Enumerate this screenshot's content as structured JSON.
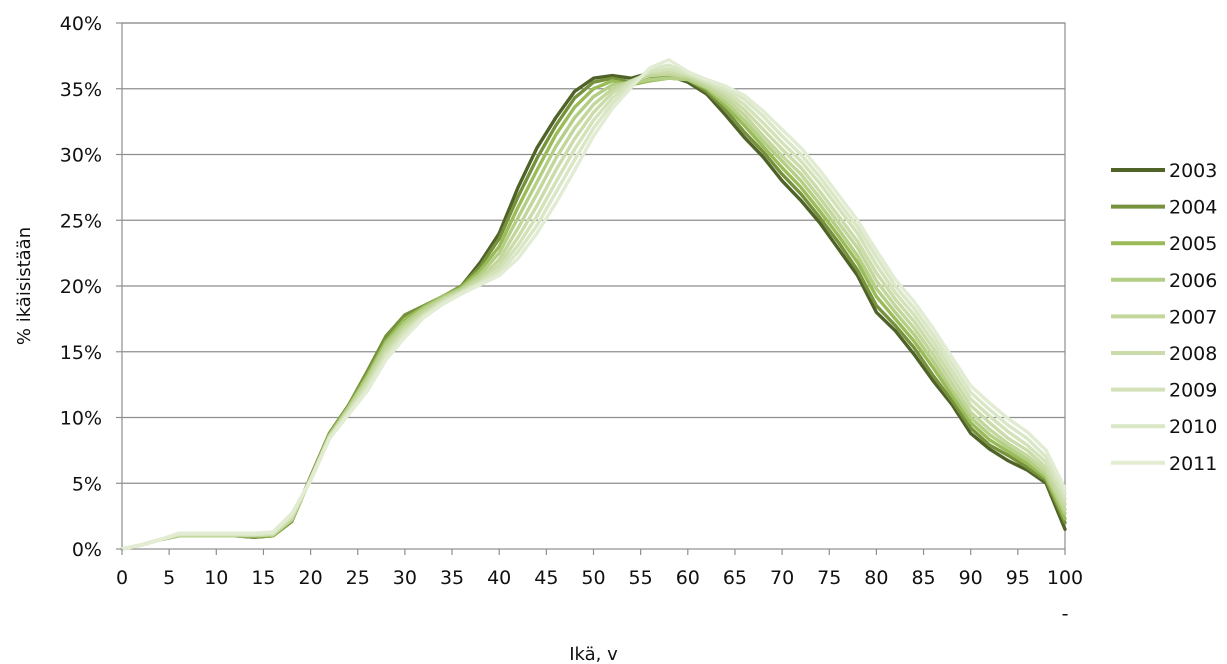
{
  "chart_data": {
    "type": "line",
    "title": "",
    "xlabel": "Ikä, v",
    "ylabel": "% ikäisistään",
    "x_ticks": [
      0,
      5,
      10,
      15,
      20,
      25,
      30,
      35,
      40,
      45,
      50,
      55,
      60,
      65,
      70,
      75,
      80,
      85,
      90,
      95,
      100
    ],
    "y_ticks": [
      "0%",
      "5%",
      "10%",
      "15%",
      "20%",
      "25%",
      "30%",
      "35%",
      "40%"
    ],
    "xlim": [
      0,
      100
    ],
    "ylim": [
      0,
      40
    ],
    "grid": "horizontal",
    "legend_position": "right",
    "extra_tick_label": "-",
    "series": [
      {
        "name": "2003",
        "color": "#4f6228",
        "x": [
          0,
          2,
          4,
          6,
          8,
          10,
          12,
          14,
          16,
          18,
          20,
          22,
          24,
          26,
          28,
          30,
          32,
          34,
          36,
          38,
          40,
          42,
          44,
          46,
          48,
          50,
          52,
          54,
          56,
          58,
          60,
          62,
          64,
          66,
          68,
          70,
          72,
          74,
          76,
          78,
          80,
          82,
          84,
          86,
          88,
          90,
          92,
          94,
          96,
          98,
          100
        ],
        "values": [
          0,
          0.3,
          0.7,
          1.0,
          1.0,
          1.0,
          1.0,
          0.9,
          1.0,
          2.1,
          5.5,
          8.8,
          10.9,
          13.2,
          16.0,
          17.6,
          18.2,
          19.1,
          20.0,
          21.8,
          24.0,
          27.5,
          30.5,
          32.8,
          34.8,
          35.8,
          36.0,
          35.8,
          36.2,
          36.0,
          35.5,
          34.6,
          33.0,
          31.3,
          29.8,
          28.0,
          26.5,
          24.8,
          22.8,
          20.8,
          18.0,
          16.6,
          14.8,
          12.8,
          11.0,
          8.8,
          7.6,
          6.7,
          6.0,
          5.0,
          1.5
        ]
      },
      {
        "name": "2004",
        "color": "#76923c",
        "x": [
          0,
          2,
          4,
          6,
          8,
          10,
          12,
          14,
          16,
          18,
          20,
          22,
          24,
          26,
          28,
          30,
          32,
          34,
          36,
          38,
          40,
          42,
          44,
          46,
          48,
          50,
          52,
          54,
          56,
          58,
          60,
          62,
          64,
          66,
          68,
          70,
          72,
          74,
          76,
          78,
          80,
          82,
          84,
          86,
          88,
          90,
          92,
          94,
          96,
          98,
          100
        ],
        "values": [
          0,
          0.3,
          0.7,
          1.0,
          1.0,
          1.0,
          1.0,
          0.9,
          1.0,
          2.1,
          5.4,
          8.8,
          10.9,
          13.5,
          16.2,
          17.8,
          18.5,
          19.2,
          20.0,
          21.5,
          23.6,
          26.8,
          29.7,
          32.2,
          34.3,
          35.5,
          35.8,
          35.5,
          35.8,
          35.9,
          35.7,
          34.8,
          33.4,
          31.7,
          30.2,
          28.5,
          27.0,
          25.2,
          23.3,
          21.2,
          18.5,
          17.0,
          15.3,
          13.2,
          11.3,
          9.2,
          7.9,
          7.1,
          6.2,
          5.2,
          2.0
        ]
      },
      {
        "name": "2005",
        "color": "#9bbb59",
        "x": [
          0,
          2,
          4,
          6,
          8,
          10,
          12,
          14,
          16,
          18,
          20,
          22,
          24,
          26,
          28,
          30,
          32,
          34,
          36,
          38,
          40,
          42,
          44,
          46,
          48,
          50,
          52,
          54,
          56,
          58,
          60,
          62,
          64,
          66,
          68,
          70,
          72,
          74,
          76,
          78,
          80,
          82,
          84,
          86,
          88,
          90,
          92,
          94,
          96,
          98,
          100
        ],
        "values": [
          0,
          0.3,
          0.7,
          1.0,
          1.0,
          1.0,
          1.0,
          1.0,
          1.0,
          2.2,
          5.4,
          8.7,
          10.8,
          13.2,
          15.8,
          17.5,
          18.4,
          19.2,
          19.9,
          21.2,
          23.0,
          26.0,
          28.8,
          31.5,
          33.6,
          35.0,
          35.6,
          35.3,
          35.6,
          35.8,
          35.7,
          35.0,
          33.7,
          32.2,
          30.6,
          29.0,
          27.5,
          25.7,
          23.8,
          21.8,
          19.2,
          17.5,
          15.8,
          13.8,
          11.7,
          9.6,
          8.3,
          7.4,
          6.5,
          5.4,
          2.3
        ]
      },
      {
        "name": "2006",
        "color": "#b3cf86",
        "x": [
          0,
          2,
          4,
          6,
          8,
          10,
          12,
          14,
          16,
          18,
          20,
          22,
          24,
          26,
          28,
          30,
          32,
          34,
          36,
          38,
          40,
          42,
          44,
          46,
          48,
          50,
          52,
          54,
          56,
          58,
          60,
          62,
          64,
          66,
          68,
          70,
          72,
          74,
          76,
          78,
          80,
          82,
          84,
          86,
          88,
          90,
          92,
          94,
          96,
          98,
          100
        ],
        "values": [
          0,
          0.3,
          0.7,
          1.0,
          1.0,
          1.0,
          1.0,
          1.0,
          1.1,
          2.2,
          5.4,
          8.6,
          10.7,
          13.0,
          15.6,
          17.2,
          18.3,
          19.1,
          19.8,
          20.9,
          22.5,
          25.2,
          27.9,
          30.6,
          32.8,
          34.4,
          35.3,
          35.4,
          35.7,
          35.8,
          35.7,
          35.1,
          34.0,
          32.6,
          31.0,
          29.5,
          28.0,
          26.2,
          24.3,
          22.3,
          19.8,
          18.0,
          16.3,
          14.3,
          12.1,
          10.0,
          8.7,
          7.7,
          6.8,
          5.6,
          2.7
        ]
      },
      {
        "name": "2007",
        "color": "#c3d69b",
        "x": [
          0,
          2,
          4,
          6,
          8,
          10,
          12,
          14,
          16,
          18,
          20,
          22,
          24,
          26,
          28,
          30,
          32,
          34,
          36,
          38,
          40,
          42,
          44,
          46,
          48,
          50,
          52,
          54,
          56,
          58,
          60,
          62,
          64,
          66,
          68,
          70,
          72,
          74,
          76,
          78,
          80,
          82,
          84,
          86,
          88,
          90,
          92,
          94,
          96,
          98,
          100
        ],
        "values": [
          0,
          0.3,
          0.7,
          1.1,
          1.1,
          1.1,
          1.1,
          1.0,
          1.1,
          2.3,
          5.3,
          8.6,
          10.6,
          12.8,
          15.3,
          16.9,
          18.1,
          19.0,
          19.7,
          20.6,
          22.0,
          24.4,
          27.0,
          29.7,
          32.0,
          33.8,
          35.0,
          35.6,
          36.0,
          36.1,
          35.9,
          35.2,
          34.3,
          33.0,
          31.4,
          29.9,
          28.5,
          26.7,
          24.8,
          22.9,
          20.4,
          18.5,
          16.8,
          14.8,
          12.6,
          10.4,
          9.1,
          8.0,
          7.1,
          5.9,
          3.0
        ]
      },
      {
        "name": "2008",
        "color": "#cbdcaa",
        "x": [
          0,
          2,
          4,
          6,
          8,
          10,
          12,
          14,
          16,
          18,
          20,
          22,
          24,
          26,
          28,
          30,
          32,
          34,
          36,
          38,
          40,
          42,
          44,
          46,
          48,
          50,
          52,
          54,
          56,
          58,
          60,
          62,
          64,
          66,
          68,
          70,
          72,
          74,
          76,
          78,
          80,
          82,
          84,
          86,
          88,
          90,
          92,
          94,
          96,
          98,
          100
        ],
        "values": [
          0,
          0.3,
          0.7,
          1.1,
          1.1,
          1.1,
          1.1,
          1.1,
          1.1,
          2.4,
          5.3,
          8.5,
          10.5,
          12.6,
          15.0,
          16.7,
          17.9,
          18.9,
          19.6,
          20.4,
          21.6,
          23.7,
          26.1,
          28.8,
          31.2,
          33.2,
          34.7,
          35.6,
          36.2,
          36.3,
          36.0,
          35.4,
          34.6,
          33.4,
          31.9,
          30.4,
          29.0,
          27.2,
          25.3,
          23.4,
          21.0,
          19.0,
          17.3,
          15.3,
          13.1,
          10.9,
          9.6,
          8.4,
          7.5,
          6.2,
          3.4
        ]
      },
      {
        "name": "2009",
        "color": "#d3e2b8",
        "x": [
          0,
          2,
          4,
          6,
          8,
          10,
          12,
          14,
          16,
          18,
          20,
          22,
          24,
          26,
          28,
          30,
          32,
          34,
          36,
          38,
          40,
          42,
          44,
          46,
          48,
          50,
          52,
          54,
          56,
          58,
          60,
          62,
          64,
          66,
          68,
          70,
          72,
          74,
          76,
          78,
          80,
          82,
          84,
          86,
          88,
          90,
          92,
          94,
          96,
          98,
          100
        ],
        "values": [
          0,
          0.3,
          0.7,
          1.1,
          1.1,
          1.1,
          1.1,
          1.1,
          1.2,
          2.5,
          5.3,
          8.5,
          10.4,
          12.4,
          14.8,
          16.5,
          17.8,
          18.8,
          19.5,
          20.3,
          21.3,
          23.1,
          25.3,
          27.9,
          30.4,
          32.6,
          34.3,
          35.5,
          36.3,
          36.5,
          36.1,
          35.5,
          34.8,
          33.8,
          32.4,
          30.9,
          29.5,
          27.8,
          25.9,
          24.0,
          21.6,
          19.5,
          17.8,
          15.8,
          13.6,
          11.4,
          10.1,
          8.9,
          7.9,
          6.6,
          3.8
        ]
      },
      {
        "name": "2010",
        "color": "#dae7c6",
        "x": [
          0,
          2,
          4,
          6,
          8,
          10,
          12,
          14,
          16,
          18,
          20,
          22,
          24,
          26,
          28,
          30,
          32,
          34,
          36,
          38,
          40,
          42,
          44,
          46,
          48,
          50,
          52,
          54,
          56,
          58,
          60,
          62,
          64,
          66,
          68,
          70,
          72,
          74,
          76,
          78,
          80,
          82,
          84,
          86,
          88,
          90,
          92,
          94,
          96,
          98,
          100
        ],
        "values": [
          0,
          0.3,
          0.7,
          1.1,
          1.1,
          1.1,
          1.1,
          1.1,
          1.2,
          2.6,
          5.2,
          8.4,
          10.3,
          12.2,
          14.6,
          16.3,
          17.7,
          18.7,
          19.5,
          20.2,
          21.0,
          22.6,
          24.6,
          27.1,
          29.6,
          32.0,
          33.9,
          35.3,
          36.5,
          36.8,
          36.2,
          35.6,
          35.0,
          34.2,
          32.9,
          31.4,
          30.0,
          28.3,
          26.4,
          24.5,
          22.2,
          20.0,
          18.3,
          16.3,
          14.1,
          11.9,
          10.6,
          9.4,
          8.4,
          7.0,
          4.2
        ]
      },
      {
        "name": "2011",
        "color": "#e2ecd3",
        "x": [
          0,
          2,
          4,
          6,
          8,
          10,
          12,
          14,
          16,
          18,
          20,
          22,
          24,
          26,
          28,
          30,
          32,
          34,
          36,
          38,
          40,
          42,
          44,
          46,
          48,
          50,
          52,
          54,
          56,
          58,
          60,
          62,
          64,
          66,
          68,
          70,
          72,
          74,
          76,
          78,
          80,
          82,
          84,
          86,
          88,
          90,
          92,
          94,
          96,
          98,
          100
        ],
        "values": [
          0,
          0.3,
          0.7,
          1.2,
          1.2,
          1.2,
          1.2,
          1.2,
          1.3,
          2.7,
          5.2,
          8.4,
          10.2,
          12.0,
          14.4,
          16.1,
          17.6,
          18.6,
          19.4,
          20.1,
          20.8,
          22.1,
          24.0,
          26.3,
          28.8,
          31.4,
          33.5,
          35.1,
          36.6,
          37.2,
          36.3,
          35.7,
          35.2,
          34.5,
          33.3,
          31.9,
          30.5,
          28.8,
          26.9,
          25.0,
          22.7,
          20.5,
          18.8,
          16.8,
          14.6,
          12.4,
          11.1,
          9.9,
          8.9,
          7.5,
          4.6
        ]
      }
    ]
  }
}
